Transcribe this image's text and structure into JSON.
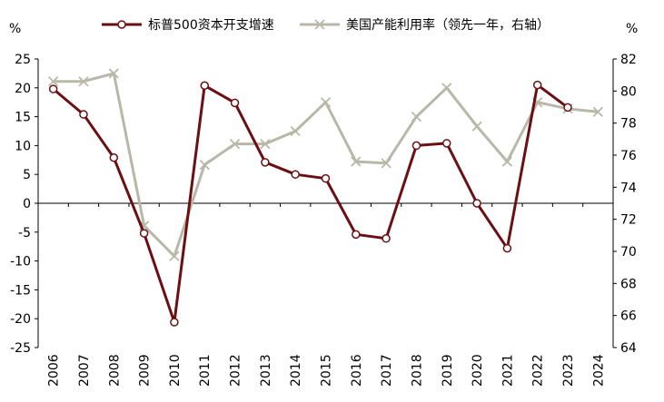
{
  "chart_data": {
    "type": "line",
    "categories": [
      "2006",
      "2007",
      "2008",
      "2009",
      "2010",
      "2011",
      "2012",
      "2013",
      "2014",
      "2015",
      "2016",
      "2017",
      "2018",
      "2019",
      "2020",
      "2021",
      "2022",
      "2023",
      "2024"
    ],
    "series": [
      {
        "name": "标普500资本开支增速",
        "axis": "left",
        "color": "#6b0f12",
        "marker": "open-circle",
        "values": [
          19.8,
          15.4,
          7.9,
          -5.2,
          -20.6,
          20.4,
          17.4,
          7.1,
          5.0,
          4.3,
          -5.4,
          -6.1,
          10.0,
          10.4,
          0.0,
          -7.8,
          20.5,
          16.6,
          null
        ]
      },
      {
        "name": "美国产能利用率（领先一年，右轴）",
        "axis": "right",
        "color": "#b8b8a8",
        "marker": "x",
        "values": [
          80.6,
          80.6,
          81.1,
          71.6,
          69.7,
          75.4,
          76.7,
          76.7,
          77.5,
          79.3,
          75.6,
          75.5,
          78.4,
          80.2,
          77.8,
          75.6,
          79.3,
          78.9,
          78.7
        ]
      }
    ],
    "left_axis": {
      "unit": "%",
      "min": -25,
      "max": 25,
      "step": 5
    },
    "right_axis": {
      "unit": "%",
      "min": 64,
      "max": 82,
      "step": 2
    },
    "legend_position": "top"
  }
}
